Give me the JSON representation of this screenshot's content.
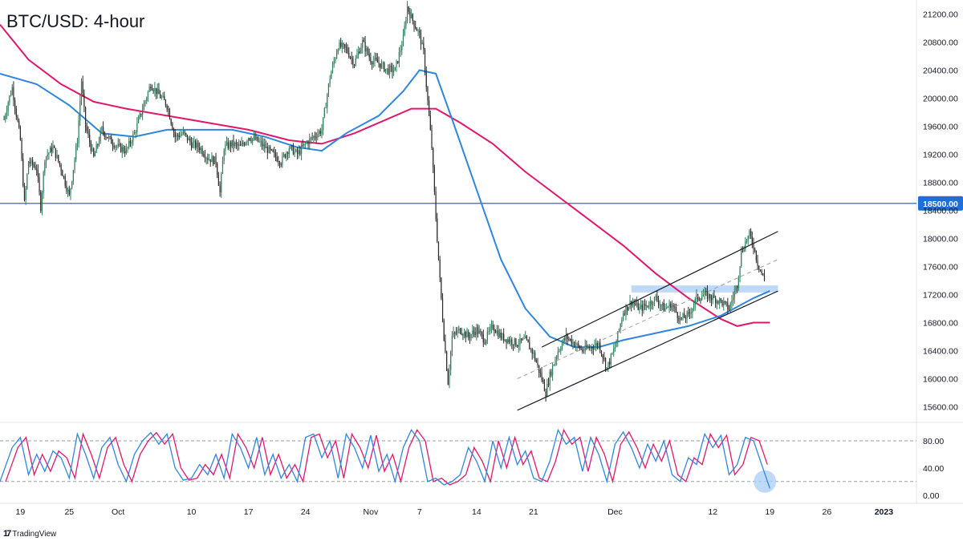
{
  "title": "BTC/USD: 4-hour",
  "brand": {
    "logo_text": "17",
    "name": "TradingView"
  },
  "colors": {
    "candle_up": "#2f7d5a",
    "candle_down": "#2b2b2b",
    "ema_fast": "#2e86de",
    "ema_slow": "#e0186c",
    "support": "#1e6fd9",
    "support_label_bg": "#1e6fd9",
    "channel": "#131722",
    "channel_mid": "#9aa0a6",
    "zone": "#a9cdf5",
    "stoch_k": "#2e86de",
    "stoch_d": "#e0186c",
    "stoch_marker": "#a9cdf5",
    "grid_dash": "#9aa0a6",
    "axis_text": "#131722"
  },
  "chart_data": {
    "type": "line",
    "price_axis": {
      "ylim": [
        15400,
        21400
      ],
      "ticks": [
        21200,
        20800,
        20400,
        20000,
        19600,
        19200,
        18800,
        18400,
        18000,
        17600,
        17200,
        16800,
        16400,
        16000,
        15600
      ],
      "tick_labels": [
        "21200.00",
        "20800.00",
        "20400.00",
        "20000.00",
        "19600.00",
        "19200.00",
        "18800.00",
        "18400.00",
        "18000.00",
        "17600.00",
        "17200.00",
        "16800.00",
        "16400.00",
        "16000.00",
        "15600.00"
      ]
    },
    "time_axis": {
      "labels": [
        "19",
        "25",
        "Oct",
        "10",
        "17",
        "24",
        "Nov",
        "7",
        "14",
        "21",
        "Dec",
        "12",
        "19",
        "26",
        "2023"
      ],
      "label_days": [
        0,
        6,
        12,
        21,
        28,
        35,
        43,
        49,
        56,
        63,
        73,
        85,
        92,
        99,
        106
      ],
      "bold": [
        "2023"
      ],
      "xlim_days": [
        -2.5,
        110
      ]
    },
    "price_series": [
      {
        "d": -2,
        "p": 19700
      },
      {
        "d": -1.5,
        "p": 19950
      },
      {
        "d": -1,
        "p": 20150
      },
      {
        "d": 0,
        "p": 19400
      },
      {
        "d": 0.5,
        "p": 18500
      },
      {
        "d": 1,
        "p": 19100
      },
      {
        "d": 2,
        "p": 19000
      },
      {
        "d": 2.5,
        "p": 18450
      },
      {
        "d": 3,
        "p": 19150
      },
      {
        "d": 4,
        "p": 19300
      },
      {
        "d": 5,
        "p": 19000
      },
      {
        "d": 6,
        "p": 18600
      },
      {
        "d": 7,
        "p": 19400
      },
      {
        "d": 7.5,
        "p": 20250
      },
      {
        "d": 8,
        "p": 19600
      },
      {
        "d": 9,
        "p": 19150
      },
      {
        "d": 10,
        "p": 19550
      },
      {
        "d": 11,
        "p": 19400
      },
      {
        "d": 12,
        "p": 19300
      },
      {
        "d": 13,
        "p": 19250
      },
      {
        "d": 14,
        "p": 19500
      },
      {
        "d": 15,
        "p": 19850
      },
      {
        "d": 16,
        "p": 20200
      },
      {
        "d": 17,
        "p": 20050
      },
      {
        "d": 18,
        "p": 19900
      },
      {
        "d": 19,
        "p": 19450
      },
      {
        "d": 20,
        "p": 19500
      },
      {
        "d": 21,
        "p": 19350
      },
      {
        "d": 22,
        "p": 19300
      },
      {
        "d": 23,
        "p": 19150
      },
      {
        "d": 24,
        "p": 19100
      },
      {
        "d": 24.5,
        "p": 18650
      },
      {
        "d": 25,
        "p": 19300
      },
      {
        "d": 26,
        "p": 19350
      },
      {
        "d": 27,
        "p": 19300
      },
      {
        "d": 28,
        "p": 19450
      },
      {
        "d": 29,
        "p": 19400
      },
      {
        "d": 30,
        "p": 19300
      },
      {
        "d": 31,
        "p": 19200
      },
      {
        "d": 32,
        "p": 19100
      },
      {
        "d": 33,
        "p": 19300
      },
      {
        "d": 34,
        "p": 19200
      },
      {
        "d": 35,
        "p": 19350
      },
      {
        "d": 36,
        "p": 19450
      },
      {
        "d": 37,
        "p": 19550
      },
      {
        "d": 38,
        "p": 20300
      },
      {
        "d": 39,
        "p": 20750
      },
      {
        "d": 40,
        "p": 20700
      },
      {
        "d": 41,
        "p": 20500
      },
      {
        "d": 42,
        "p": 20800
      },
      {
        "d": 43,
        "p": 20550
      },
      {
        "d": 44,
        "p": 20500
      },
      {
        "d": 45,
        "p": 20400
      },
      {
        "d": 46,
        "p": 20400
      },
      {
        "d": 47,
        "p": 20850
      },
      {
        "d": 47.5,
        "p": 21300
      },
      {
        "d": 48,
        "p": 21150
      },
      {
        "d": 49,
        "p": 20900
      },
      {
        "d": 49.5,
        "p": 20650
      },
      {
        "d": 50,
        "p": 19950
      },
      {
        "d": 50.5,
        "p": 19300
      },
      {
        "d": 51,
        "p": 18300
      },
      {
        "d": 51.5,
        "p": 17400
      },
      {
        "d": 52,
        "p": 16600
      },
      {
        "d": 52.5,
        "p": 15950
      },
      {
        "d": 53,
        "p": 16600
      },
      {
        "d": 54,
        "p": 16700
      },
      {
        "d": 55,
        "p": 16600
      },
      {
        "d": 56,
        "p": 16700
      },
      {
        "d": 57,
        "p": 16550
      },
      {
        "d": 58,
        "p": 16750
      },
      {
        "d": 59,
        "p": 16600
      },
      {
        "d": 60,
        "p": 16550
      },
      {
        "d": 61,
        "p": 16500
      },
      {
        "d": 62,
        "p": 16550
      },
      {
        "d": 63,
        "p": 16350
      },
      {
        "d": 64,
        "p": 16000
      },
      {
        "d": 64.5,
        "p": 15800
      },
      {
        "d": 65,
        "p": 16050
      },
      {
        "d": 66,
        "p": 16400
      },
      {
        "d": 67,
        "p": 16600
      },
      {
        "d": 68,
        "p": 16500
      },
      {
        "d": 69,
        "p": 16400
      },
      {
        "d": 70,
        "p": 16450
      },
      {
        "d": 71,
        "p": 16500
      },
      {
        "d": 72,
        "p": 16150
      },
      {
        "d": 73,
        "p": 16450
      },
      {
        "d": 74,
        "p": 16950
      },
      {
        "d": 75,
        "p": 17100
      },
      {
        "d": 76,
        "p": 17000
      },
      {
        "d": 77,
        "p": 17050
      },
      {
        "d": 78,
        "p": 17150
      },
      {
        "d": 79,
        "p": 17000
      },
      {
        "d": 80,
        "p": 17050
      },
      {
        "d": 81,
        "p": 16850
      },
      {
        "d": 82,
        "p": 16900
      },
      {
        "d": 83,
        "p": 17150
      },
      {
        "d": 84,
        "p": 17200
      },
      {
        "d": 85,
        "p": 17150
      },
      {
        "d": 86,
        "p": 17100
      },
      {
        "d": 87,
        "p": 17000
      },
      {
        "d": 88,
        "p": 17350
      },
      {
        "d": 88.5,
        "p": 17800
      },
      {
        "d": 89,
        "p": 17950
      },
      {
        "d": 89.5,
        "p": 18050
      },
      {
        "d": 90,
        "p": 17900
      },
      {
        "d": 90.5,
        "p": 17650
      },
      {
        "d": 91,
        "p": 17500
      },
      {
        "d": 91.5,
        "p": 17350
      }
    ],
    "ema_fast": [
      {
        "d": -2.5,
        "p": 20350
      },
      {
        "d": 2,
        "p": 20200
      },
      {
        "d": 6,
        "p": 19900
      },
      {
        "d": 10,
        "p": 19500
      },
      {
        "d": 14,
        "p": 19450
      },
      {
        "d": 18,
        "p": 19550
      },
      {
        "d": 22,
        "p": 19550
      },
      {
        "d": 26,
        "p": 19550
      },
      {
        "d": 30,
        "p": 19450
      },
      {
        "d": 34,
        "p": 19300
      },
      {
        "d": 37,
        "p": 19250
      },
      {
        "d": 40,
        "p": 19500
      },
      {
        "d": 44,
        "p": 19750
      },
      {
        "d": 47,
        "p": 20100
      },
      {
        "d": 49,
        "p": 20400
      },
      {
        "d": 51,
        "p": 20350
      },
      {
        "d": 53,
        "p": 19700
      },
      {
        "d": 56,
        "p": 18700
      },
      {
        "d": 59,
        "p": 17700
      },
      {
        "d": 62,
        "p": 17000
      },
      {
        "d": 65,
        "p": 16600
      },
      {
        "d": 68,
        "p": 16450
      },
      {
        "d": 71,
        "p": 16450
      },
      {
        "d": 74,
        "p": 16550
      },
      {
        "d": 78,
        "p": 16650
      },
      {
        "d": 82,
        "p": 16750
      },
      {
        "d": 86,
        "p": 16900
      },
      {
        "d": 90,
        "p": 17150
      },
      {
        "d": 92,
        "p": 17250
      }
    ],
    "ema_slow": [
      {
        "d": -2.5,
        "p": 21050
      },
      {
        "d": 1,
        "p": 20550
      },
      {
        "d": 5,
        "p": 20200
      },
      {
        "d": 9,
        "p": 19950
      },
      {
        "d": 13,
        "p": 19850
      },
      {
        "d": 18,
        "p": 19750
      },
      {
        "d": 23,
        "p": 19650
      },
      {
        "d": 28,
        "p": 19550
      },
      {
        "d": 33,
        "p": 19400
      },
      {
        "d": 37,
        "p": 19350
      },
      {
        "d": 41,
        "p": 19500
      },
      {
        "d": 45,
        "p": 19700
      },
      {
        "d": 48,
        "p": 19850
      },
      {
        "d": 51,
        "p": 19850
      },
      {
        "d": 54,
        "p": 19650
      },
      {
        "d": 58,
        "p": 19350
      },
      {
        "d": 62,
        "p": 18950
      },
      {
        "d": 66,
        "p": 18600
      },
      {
        "d": 70,
        "p": 18250
      },
      {
        "d": 74,
        "p": 17900
      },
      {
        "d": 78,
        "p": 17500
      },
      {
        "d": 82,
        "p": 17150
      },
      {
        "d": 86,
        "p": 16850
      },
      {
        "d": 88,
        "p": 16750
      },
      {
        "d": 90,
        "p": 16800
      },
      {
        "d": 92,
        "p": 16800
      }
    ],
    "support_level": {
      "price": 18500,
      "label": "18500.00"
    },
    "channel": {
      "lower": [
        {
          "d": 61,
          "p": 15550
        },
        {
          "d": 93,
          "p": 17250
        }
      ],
      "upper": [
        {
          "d": 64,
          "p": 16450
        },
        {
          "d": 93,
          "p": 18100
        }
      ],
      "mid": [
        {
          "d": 61,
          "p": 16000
        },
        {
          "d": 93,
          "p": 17700
        }
      ]
    },
    "zone": {
      "d_start": 75,
      "d_end": 93,
      "p_low": 17230,
      "p_high": 17330
    },
    "stochastic": {
      "ylim": [
        -5,
        100
      ],
      "ticks": [
        80,
        40,
        0
      ],
      "tick_labels": [
        "80.00",
        "40.00",
        "0.00"
      ],
      "levels": [
        80,
        20
      ],
      "k": [
        {
          "d": -2.5,
          "v": 20
        },
        {
          "d": -1,
          "v": 70
        },
        {
          "d": 0,
          "v": 85
        },
        {
          "d": 1,
          "v": 30
        },
        {
          "d": 2,
          "v": 60
        },
        {
          "d": 3,
          "v": 35
        },
        {
          "d": 4,
          "v": 65
        },
        {
          "d": 5,
          "v": 55
        },
        {
          "d": 6,
          "v": 25
        },
        {
          "d": 7,
          "v": 90
        },
        {
          "d": 8,
          "v": 60
        },
        {
          "d": 9,
          "v": 25
        },
        {
          "d": 10,
          "v": 70
        },
        {
          "d": 11,
          "v": 85
        },
        {
          "d": 12,
          "v": 45
        },
        {
          "d": 13,
          "v": 20
        },
        {
          "d": 14,
          "v": 60
        },
        {
          "d": 15,
          "v": 80
        },
        {
          "d": 16,
          "v": 92
        },
        {
          "d": 17,
          "v": 75
        },
        {
          "d": 18,
          "v": 90
        },
        {
          "d": 19,
          "v": 40
        },
        {
          "d": 20,
          "v": 22
        },
        {
          "d": 21,
          "v": 25
        },
        {
          "d": 22,
          "v": 45
        },
        {
          "d": 23,
          "v": 30
        },
        {
          "d": 24,
          "v": 60
        },
        {
          "d": 25,
          "v": 25
        },
        {
          "d": 26,
          "v": 90
        },
        {
          "d": 27,
          "v": 70
        },
        {
          "d": 28,
          "v": 40
        },
        {
          "d": 29,
          "v": 85
        },
        {
          "d": 30,
          "v": 30
        },
        {
          "d": 31,
          "v": 60
        },
        {
          "d": 32,
          "v": 25
        },
        {
          "d": 33,
          "v": 45
        },
        {
          "d": 34,
          "v": 20
        },
        {
          "d": 35,
          "v": 85
        },
        {
          "d": 36,
          "v": 90
        },
        {
          "d": 37,
          "v": 55
        },
        {
          "d": 38,
          "v": 80
        },
        {
          "d": 39,
          "v": 25
        },
        {
          "d": 40,
          "v": 90
        },
        {
          "d": 41,
          "v": 70
        },
        {
          "d": 42,
          "v": 40
        },
        {
          "d": 43,
          "v": 88
        },
        {
          "d": 44,
          "v": 35
        },
        {
          "d": 45,
          "v": 60
        },
        {
          "d": 46,
          "v": 20
        },
        {
          "d": 47,
          "v": 70
        },
        {
          "d": 48,
          "v": 96
        },
        {
          "d": 49,
          "v": 80
        },
        {
          "d": 50,
          "v": 20
        },
        {
          "d": 51,
          "v": 25
        },
        {
          "d": 52,
          "v": 15
        },
        {
          "d": 53,
          "v": 20
        },
        {
          "d": 54,
          "v": 30
        },
        {
          "d": 55,
          "v": 70
        },
        {
          "d": 56,
          "v": 50
        },
        {
          "d": 57,
          "v": 20
        },
        {
          "d": 58,
          "v": 80
        },
        {
          "d": 59,
          "v": 40
        },
        {
          "d": 60,
          "v": 85
        },
        {
          "d": 61,
          "v": 45
        },
        {
          "d": 62,
          "v": 65
        },
        {
          "d": 63,
          "v": 25
        },
        {
          "d": 64,
          "v": 20
        },
        {
          "d": 65,
          "v": 50
        },
        {
          "d": 66,
          "v": 96
        },
        {
          "d": 67,
          "v": 75
        },
        {
          "d": 68,
          "v": 85
        },
        {
          "d": 69,
          "v": 35
        },
        {
          "d": 70,
          "v": 85
        },
        {
          "d": 71,
          "v": 60
        },
        {
          "d": 72,
          "v": 20
        },
        {
          "d": 73,
          "v": 75
        },
        {
          "d": 74,
          "v": 93
        },
        {
          "d": 75,
          "v": 70
        },
        {
          "d": 76,
          "v": 40
        },
        {
          "d": 77,
          "v": 75
        },
        {
          "d": 78,
          "v": 50
        },
        {
          "d": 79,
          "v": 80
        },
        {
          "d": 80,
          "v": 30
        },
        {
          "d": 81,
          "v": 20
        },
        {
          "d": 82,
          "v": 55
        },
        {
          "d": 83,
          "v": 45
        },
        {
          "d": 84,
          "v": 90
        },
        {
          "d": 85,
          "v": 70
        },
        {
          "d": 86,
          "v": 88
        },
        {
          "d": 87,
          "v": 30
        },
        {
          "d": 88,
          "v": 45
        },
        {
          "d": 89,
          "v": 85
        },
        {
          "d": 90,
          "v": 80
        },
        {
          "d": 91,
          "v": 45
        },
        {
          "d": 92,
          "v": 10
        }
      ],
      "d_lag": 0.7,
      "marker": {
        "d": 91.4,
        "v": 20
      }
    }
  }
}
